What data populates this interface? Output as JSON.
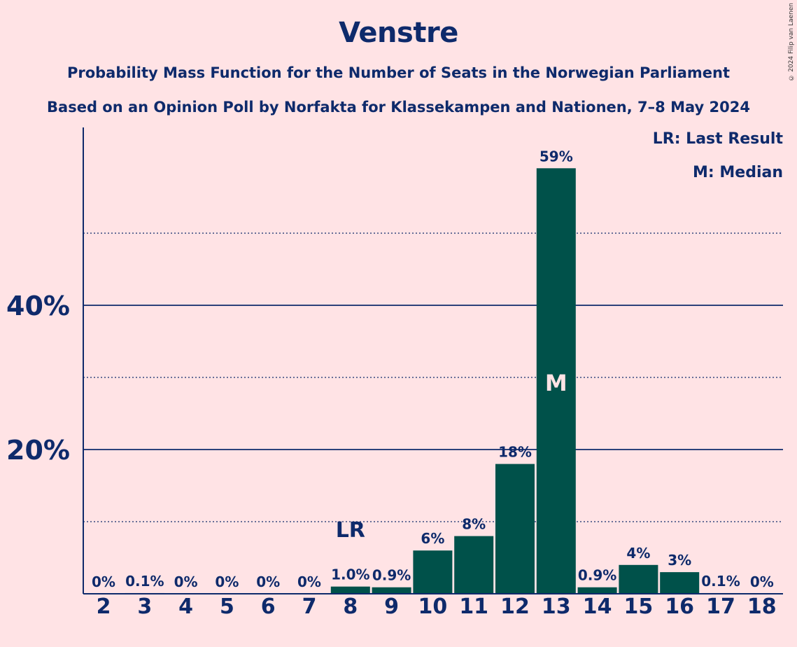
{
  "title": "Venstre",
  "subtitle_1": "Probability Mass Function for the Number of Seats in the Norwegian Parliament",
  "subtitle_2": "Based on an Opinion Poll by Norfakta for Klassekampen and Nationen, 7–8 May 2024",
  "copyright": "© 2024 Filip van Laenen",
  "legend": {
    "last_result": "LR: Last Result",
    "median": "M: Median"
  },
  "colors": {
    "background": "#FFE3E5",
    "bar": "#00514A",
    "text": "#0E2A6B"
  },
  "chart_data": {
    "type": "bar",
    "categories": [
      "2",
      "3",
      "4",
      "5",
      "6",
      "7",
      "8",
      "9",
      "10",
      "11",
      "12",
      "13",
      "14",
      "15",
      "16",
      "17",
      "18"
    ],
    "values": [
      0,
      0.1,
      0,
      0,
      0,
      0,
      1.0,
      0.9,
      6,
      8,
      18,
      59,
      0.9,
      4,
      3,
      0.1,
      0
    ],
    "labels": [
      "0%",
      "0.1%",
      "0%",
      "0%",
      "0%",
      "0%",
      "1.0%",
      "0.9%",
      "6%",
      "8%",
      "18%",
      "59%",
      "0.9%",
      "4%",
      "3%",
      "0.1%",
      "0%"
    ],
    "yticks": [
      20,
      40
    ],
    "ytick_labels": [
      "20%",
      "40%"
    ],
    "minor_gridlines": [
      10,
      30,
      50
    ],
    "ylim": [
      0,
      64
    ],
    "last_result": {
      "category": "8",
      "label": "LR"
    },
    "median": {
      "category": "13",
      "label": "M"
    },
    "legend_position": "top-right"
  }
}
